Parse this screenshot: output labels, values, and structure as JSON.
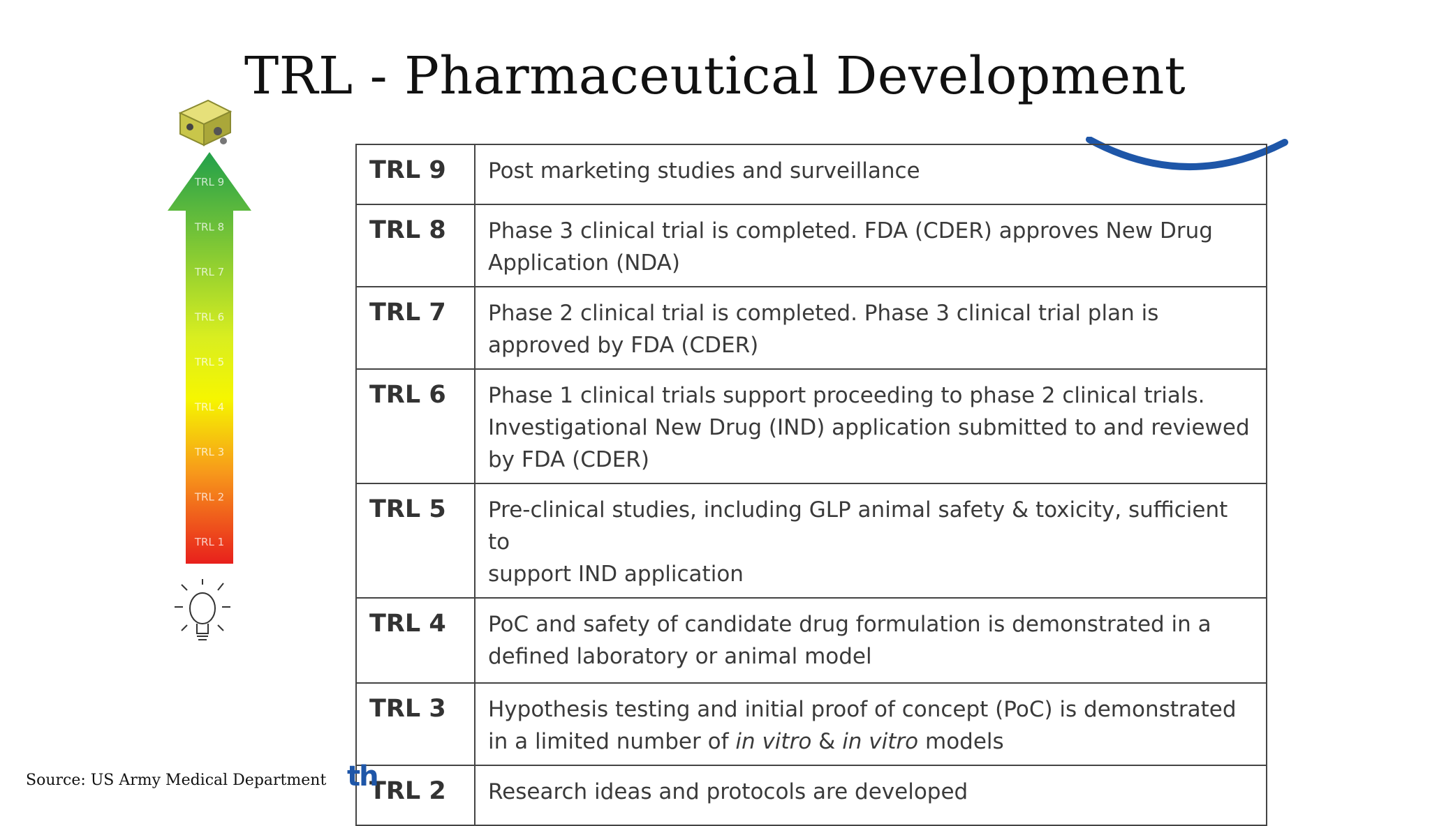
{
  "title": "TRL - Pharmaceutical Development",
  "source": "Source: US Army Medical Department",
  "logo_text": "th",
  "gauge": {
    "labels": [
      "TRL 9",
      "TRL 8",
      "TRL 7",
      "TRL 6",
      "TRL 5",
      "TRL 4",
      "TRL 3",
      "TRL 2",
      "TRL 1"
    ],
    "top_icon": "package-icon",
    "bottom_icon": "lightbulb-icon"
  },
  "rows": [
    {
      "level": "TRL 9",
      "lines": [
        "Post marketing studies and surveillance"
      ]
    },
    {
      "level": "TRL 8",
      "lines": [
        "Phase 3 clinical trial is completed. FDA (CDER) approves New Drug",
        "Application (NDA)"
      ]
    },
    {
      "level": "TRL 7",
      "lines": [
        "Phase 2 clinical trial is completed. Phase 3 clinical trial plan is",
        "approved by FDA (CDER)"
      ]
    },
    {
      "level": "TRL 6",
      "lines": [
        "Phase 1 clinical trials support proceeding to phase 2 clinical trials.",
        "Investigational New Drug (IND) application submitted to and reviewed",
        "by FDA (CDER)"
      ]
    },
    {
      "level": "TRL 5",
      "lines": [
        "Pre-clinical studies, including GLP animal safety & toxicity, sufficient to",
        "support IND application"
      ]
    },
    {
      "level": "TRL 4",
      "lines": [
        "PoC and safety of candidate drug formulation is demonstrated in a",
        "defined laboratory or animal model"
      ]
    },
    {
      "level": "TRL 3",
      "lines": [
        "Hypothesis testing and initial proof of concept (PoC) is demonstrated",
        "in a limited number of ",
        "in vitro",
        " & ",
        "in vitro",
        " models"
      ]
    },
    {
      "level": "TRL 2",
      "lines": [
        "Research ideas and protocols are developed"
      ]
    }
  ],
  "colors": {
    "arrow_top": "#22a04a",
    "arrow_mid": "#f2f200",
    "arrow_bottom": "#e8201c",
    "arc": "#1e56a8"
  }
}
